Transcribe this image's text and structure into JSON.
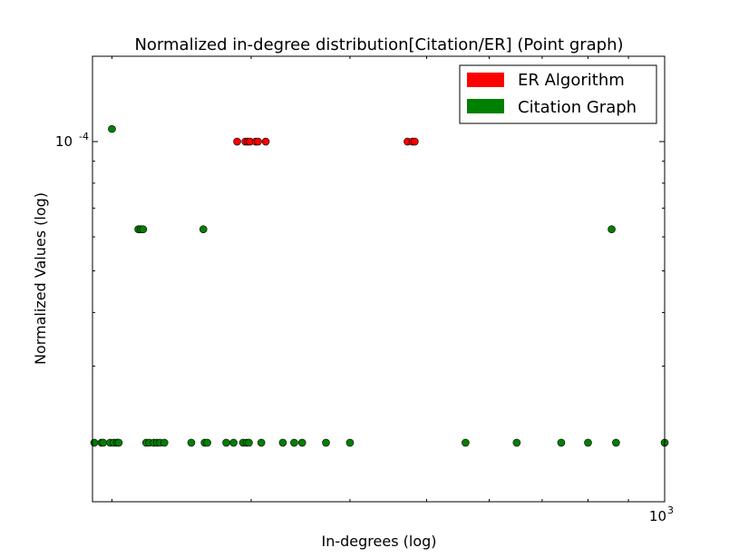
{
  "chart_data": {
    "type": "scatter",
    "title": "Normalized in-degree distribution[Citation/ER] (Point graph)",
    "xlabel": "In-degrees (log)",
    "ylabel": "Normalized Values (log)",
    "xscale": "log",
    "yscale": "log",
    "xlim": [
      189,
      1000
    ],
    "ylim": [
      1.45e-05,
      0.000158
    ],
    "x_ticks": [
      {
        "value": 1000,
        "base": "10",
        "exp": "3"
      }
    ],
    "y_ticks": [
      {
        "value": 0.0001,
        "base": "10",
        "exp": "-4"
      }
    ],
    "grid": false,
    "legend": "top-right",
    "series": [
      {
        "name": "ER Algorithm",
        "color": "#ff0000",
        "points": [
          {
            "x": 288,
            "y": 0.0001
          },
          {
            "x": 295,
            "y": 0.0001
          },
          {
            "x": 297,
            "y": 0.0001
          },
          {
            "x": 299,
            "y": 0.0001
          },
          {
            "x": 304,
            "y": 0.0001
          },
          {
            "x": 306,
            "y": 0.0001
          },
          {
            "x": 313,
            "y": 0.0001
          },
          {
            "x": 473,
            "y": 0.0001
          },
          {
            "x": 480,
            "y": 0.0001
          },
          {
            "x": 483,
            "y": 0.0001
          }
        ]
      },
      {
        "name": "Citation Graph",
        "color": "#008000",
        "points": [
          {
            "x": 200,
            "y": 0.000107
          },
          {
            "x": 216,
            "y": 6.25e-05
          },
          {
            "x": 217.5,
            "y": 6.25e-05
          },
          {
            "x": 219,
            "y": 6.25e-05
          },
          {
            "x": 261,
            "y": 6.25e-05
          },
          {
            "x": 857,
            "y": 6.25e-05
          },
          {
            "x": 190,
            "y": 1.99e-05
          },
          {
            "x": 194,
            "y": 1.99e-05
          },
          {
            "x": 195,
            "y": 1.99e-05
          },
          {
            "x": 199,
            "y": 1.99e-05
          },
          {
            "x": 201,
            "y": 1.99e-05
          },
          {
            "x": 203,
            "y": 1.99e-05
          },
          {
            "x": 204,
            "y": 1.99e-05
          },
          {
            "x": 221,
            "y": 1.99e-05
          },
          {
            "x": 223,
            "y": 1.99e-05
          },
          {
            "x": 226,
            "y": 1.99e-05
          },
          {
            "x": 228,
            "y": 1.99e-05
          },
          {
            "x": 230,
            "y": 1.99e-05
          },
          {
            "x": 233,
            "y": 1.99e-05
          },
          {
            "x": 252,
            "y": 1.99e-05
          },
          {
            "x": 262,
            "y": 1.99e-05
          },
          {
            "x": 264,
            "y": 1.99e-05
          },
          {
            "x": 279,
            "y": 1.99e-05
          },
          {
            "x": 285,
            "y": 1.99e-05
          },
          {
            "x": 293,
            "y": 1.99e-05
          },
          {
            "x": 296,
            "y": 1.99e-05
          },
          {
            "x": 298,
            "y": 1.99e-05
          },
          {
            "x": 309,
            "y": 1.99e-05
          },
          {
            "x": 329,
            "y": 1.99e-05
          },
          {
            "x": 340,
            "y": 1.99e-05
          },
          {
            "x": 348,
            "y": 1.99e-05
          },
          {
            "x": 373,
            "y": 1.99e-05
          },
          {
            "x": 400,
            "y": 1.99e-05
          },
          {
            "x": 560,
            "y": 1.99e-05
          },
          {
            "x": 650,
            "y": 1.99e-05
          },
          {
            "x": 740,
            "y": 1.99e-05
          },
          {
            "x": 800,
            "y": 1.99e-05
          },
          {
            "x": 868,
            "y": 1.99e-05
          },
          {
            "x": 1000,
            "y": 1.99e-05
          }
        ]
      }
    ]
  }
}
